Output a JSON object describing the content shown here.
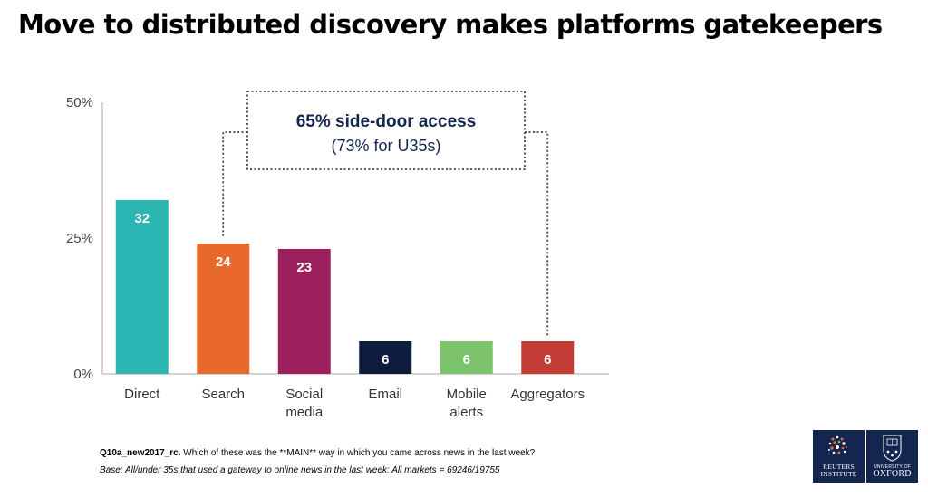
{
  "slide": {
    "title": "Move to distributed discovery makes platforms gatekeepers"
  },
  "chart_data": {
    "type": "bar",
    "categories": [
      "Direct",
      "Search",
      "Social media",
      "Email",
      "Mobile alerts",
      "Aggregators"
    ],
    "category_lines": [
      [
        "Direct"
      ],
      [
        "Search"
      ],
      [
        "Social",
        "media"
      ],
      [
        "Email"
      ],
      [
        "Mobile",
        "alerts"
      ],
      [
        "Aggregators"
      ]
    ],
    "values": [
      32,
      24,
      23,
      6,
      6,
      6
    ],
    "data_labels": [
      "32",
      "24",
      "23",
      "6",
      "6",
      "6"
    ],
    "bar_colors": [
      "#2bb6b4",
      "#e8692b",
      "#9c1f5e",
      "#0e1c3d",
      "#7cc46b",
      "#c23b34"
    ],
    "yticks": [
      0,
      25,
      50
    ],
    "ytick_labels": [
      "0%",
      "25%",
      "50%"
    ],
    "ylim": [
      0,
      50
    ],
    "xlabel": "",
    "ylabel": "",
    "annotation": {
      "headline": "65% side-door access",
      "subline": "(73% for U35s)",
      "connects": [
        "Search",
        "Aggregators"
      ]
    }
  },
  "footnote": {
    "question_id": "Q10a_new2017_rc.",
    "question_text": " Which of these was the **MAIN** way in which you came across news in the last week?",
    "base": "Base: All/under 35s that used a gateway to online news in the last week: All markets = 69246/19755"
  },
  "logos": {
    "reuters_line1": "REUTERS",
    "reuters_line2": "INSTITUTE",
    "oxford_line1": "UNIVERSITY OF",
    "oxford_line2": "OXFORD"
  }
}
